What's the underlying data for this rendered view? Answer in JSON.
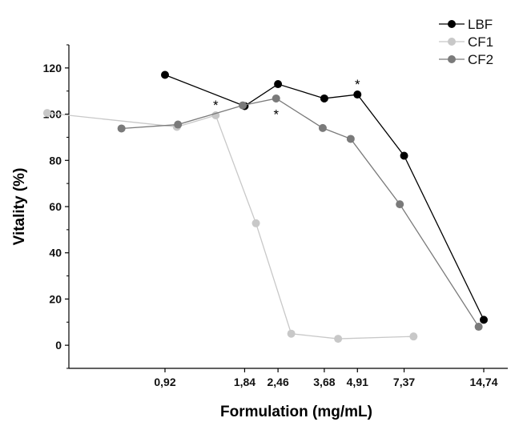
{
  "chart_data": {
    "type": "line",
    "title": "",
    "xlabel": "Formulation (mg/mL)",
    "ylabel": "Vitality (%)",
    "ylim": [
      -10,
      130
    ],
    "y_ticks": [
      0,
      20,
      40,
      60,
      80,
      100,
      120
    ],
    "x_tick_labels": [
      "0,92",
      "1,84",
      "2,46",
      "3,68",
      "4,91",
      "7,37",
      "14,74"
    ],
    "x_scale": "log",
    "grid": false,
    "legend_position": "top-right",
    "series": [
      {
        "name": "LBF",
        "color": "#000000",
        "points": [
          {
            "x": 0.92,
            "y": 117
          },
          {
            "x": 1.84,
            "y": 103.5
          },
          {
            "x": 2.46,
            "y": 113
          },
          {
            "x": 3.68,
            "y": 106.8
          },
          {
            "x": 4.91,
            "y": 108.5
          },
          {
            "x": 7.37,
            "y": 82
          },
          {
            "x": 14.74,
            "y": 11
          }
        ]
      },
      {
        "name": "CF1",
        "color": "#c8c8c8",
        "points": [
          {
            "x": 0.33,
            "y": 100.5
          },
          {
            "x": 1.02,
            "y": 94.5
          },
          {
            "x": 1.43,
            "y": 99.5
          },
          {
            "x": 2.03,
            "y": 52.8
          },
          {
            "x": 2.76,
            "y": 5
          },
          {
            "x": 4.15,
            "y": 2.8
          },
          {
            "x": 8.0,
            "y": 3.8
          }
        ]
      },
      {
        "name": "CF2",
        "color": "#7a7a7a",
        "points": [
          {
            "x": 0.63,
            "y": 93.8
          },
          {
            "x": 1.03,
            "y": 95.5
          },
          {
            "x": 1.81,
            "y": 103.8
          },
          {
            "x": 2.42,
            "y": 106.8
          },
          {
            "x": 3.63,
            "y": 94
          },
          {
            "x": 4.63,
            "y": 89.3
          },
          {
            "x": 7.1,
            "y": 61
          },
          {
            "x": 14.1,
            "y": 8
          }
        ]
      }
    ],
    "annotations": [
      {
        "text": "*",
        "x": 1.43,
        "y": 104
      },
      {
        "text": "*",
        "x": 2.42,
        "y": 100
      },
      {
        "text": "*",
        "x": 4.91,
        "y": 113
      }
    ]
  }
}
